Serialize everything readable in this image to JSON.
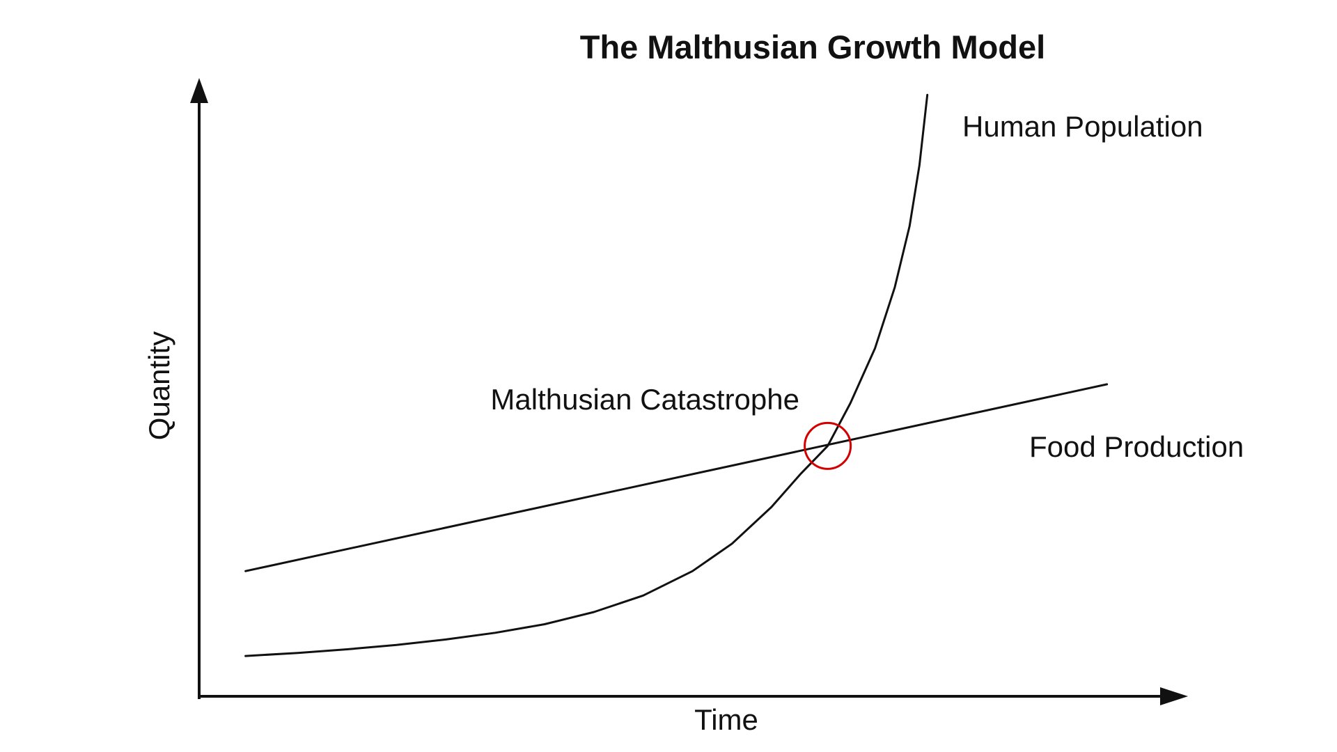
{
  "page": {
    "background_color": "#ffffff",
    "ink_color": "#111111"
  },
  "chart_data": {
    "type": "line",
    "title": "The Malthusian Growth Model",
    "xlabel": "Time",
    "ylabel": "Quantity",
    "axes": {
      "x_range": [
        0,
        10
      ],
      "y_range": [
        0,
        10
      ],
      "grid": false,
      "tick_labels": "none",
      "arrows": "both axes end in arrowheads"
    },
    "line_color": "#111111",
    "series": [
      {
        "name": "Human Population",
        "label": "Human Population",
        "shape": "exponential growth curve",
        "color": "#111111",
        "points": [
          [
            0.47,
            0.66
          ],
          [
            1.0,
            0.71
          ],
          [
            1.5,
            0.77
          ],
          [
            2.0,
            0.84
          ],
          [
            2.5,
            0.93
          ],
          [
            3.0,
            1.04
          ],
          [
            3.5,
            1.18
          ],
          [
            4.0,
            1.38
          ],
          [
            4.5,
            1.65
          ],
          [
            5.0,
            2.05
          ],
          [
            5.4,
            2.5
          ],
          [
            5.8,
            3.1
          ],
          [
            6.1,
            3.65
          ],
          [
            6.37,
            4.1
          ],
          [
            6.6,
            4.8
          ],
          [
            6.85,
            5.7
          ],
          [
            7.05,
            6.7
          ],
          [
            7.2,
            7.7
          ],
          [
            7.3,
            8.7
          ],
          [
            7.38,
            9.85
          ]
        ]
      },
      {
        "name": "Food Production",
        "label": "Food Production",
        "shape": "straight line, gentle positive slope",
        "color": "#111111",
        "points": [
          [
            0.47,
            2.05
          ],
          [
            9.2,
            5.11
          ]
        ]
      }
    ],
    "annotation": {
      "label": "Malthusian Catastrophe",
      "meaning": "intersection of the two curves, circled",
      "x": 6.37,
      "y": 4.1,
      "radius_px": 33,
      "color": "#d40000"
    },
    "legend_position": "labels placed directly beside each curve"
  }
}
